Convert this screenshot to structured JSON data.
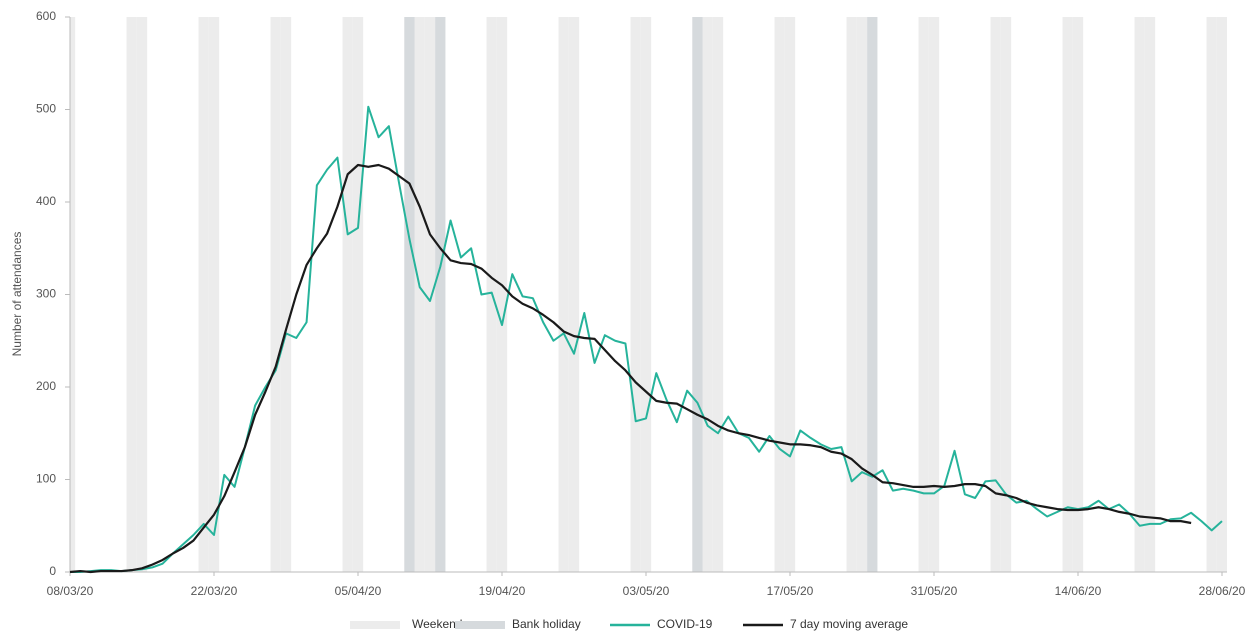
{
  "chart_data": {
    "type": "line",
    "y_label": "Number of attendances",
    "categories": [
      "08/03/20",
      null,
      null,
      null,
      null,
      null,
      null,
      null,
      null,
      null,
      null,
      null,
      null,
      null,
      "22/03/20",
      null,
      null,
      null,
      null,
      null,
      null,
      null,
      null,
      null,
      null,
      null,
      null,
      null,
      "05/04/20",
      null,
      null,
      null,
      null,
      null,
      null,
      null,
      null,
      null,
      null,
      null,
      null,
      null,
      "19/04/20",
      null,
      null,
      null,
      null,
      null,
      null,
      null,
      null,
      null,
      null,
      null,
      null,
      null,
      "03/05/20",
      null,
      null,
      null,
      null,
      null,
      null,
      null,
      null,
      null,
      null,
      null,
      null,
      null,
      "17/05/20",
      null,
      null,
      null,
      null,
      null,
      null,
      null,
      null,
      null,
      null,
      null,
      null,
      null,
      "31/05/20",
      null,
      null,
      null,
      null,
      null,
      null,
      null,
      null,
      null,
      null,
      null,
      null,
      null,
      "14/06/20",
      null,
      null,
      null,
      null,
      null,
      null,
      null,
      null,
      null,
      null,
      null,
      null,
      null,
      "28/06/20"
    ],
    "series": [
      {
        "name": "COVID-19",
        "color": "#26b39b",
        "width": 2,
        "values": [
          0,
          0,
          1,
          2,
          2,
          1,
          2,
          3,
          5,
          9,
          20,
          30,
          40,
          52,
          40,
          105,
          92,
          135,
          180,
          200,
          218,
          258,
          253,
          270,
          418,
          435,
          448,
          365,
          372,
          503,
          470,
          482,
          420,
          360,
          308,
          293,
          330,
          380,
          340,
          350,
          300,
          302,
          267,
          322,
          298,
          296,
          270,
          250,
          258,
          236,
          280,
          226,
          256,
          250,
          247,
          163,
          166,
          215,
          186,
          162,
          196,
          183,
          158,
          150,
          168,
          150,
          145,
          130,
          147,
          133,
          125,
          153,
          145,
          138,
          133,
          135,
          98,
          108,
          103,
          110,
          88,
          90,
          88,
          85,
          85,
          93,
          131,
          84,
          80,
          98,
          99,
          84,
          75,
          77,
          68,
          60,
          65,
          70,
          68,
          70,
          77,
          68,
          73,
          63,
          50,
          52,
          52,
          57,
          58,
          64,
          55,
          45,
          55
        ]
      },
      {
        "name": "7 day moving average",
        "color": "#1a1a1a",
        "width": 2.2,
        "values": [
          0,
          1,
          0,
          1,
          1,
          1,
          2,
          4,
          8,
          13,
          20,
          26,
          34,
          48,
          62,
          82,
          108,
          135,
          170,
          195,
          222,
          262,
          300,
          332,
          350,
          366,
          395,
          430,
          440,
          438,
          440,
          436,
          428,
          420,
          395,
          365,
          350,
          337,
          334,
          333,
          328,
          318,
          310,
          298,
          290,
          285,
          278,
          270,
          260,
          255,
          253,
          252,
          240,
          228,
          218,
          205,
          195,
          185,
          183,
          182,
          176,
          170,
          165,
          158,
          153,
          150,
          148,
          145,
          142,
          140,
          138,
          138,
          137,
          135,
          130,
          128,
          122,
          112,
          105,
          97,
          96,
          94,
          92,
          92,
          93,
          92,
          93,
          95,
          95,
          93,
          85,
          83,
          80,
          75,
          72,
          70,
          68,
          67,
          67,
          68,
          70,
          68,
          65,
          63,
          60,
          59,
          58,
          55,
          55,
          53,
          null,
          null,
          null
        ]
      }
    ],
    "weekend": {
      "name": "Weekend",
      "color": "#ececec",
      "days": [
        0,
        6,
        7,
        13,
        14,
        20,
        21,
        27,
        28,
        34,
        35,
        41,
        42,
        48,
        49,
        55,
        56,
        62,
        63,
        69,
        70,
        76,
        77,
        83,
        84,
        90,
        91,
        97,
        98,
        104,
        105,
        111,
        112
      ]
    },
    "bank_holiday": {
      "name": "Bank holiday",
      "color": "#d6dadd",
      "days": [
        33,
        36,
        61,
        78
      ]
    },
    "ylim": [
      0,
      600
    ],
    "yticks": [
      0,
      100,
      200,
      300,
      400,
      500,
      600
    ],
    "grid": false
  }
}
